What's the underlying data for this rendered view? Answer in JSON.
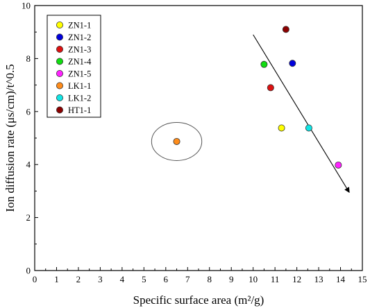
{
  "chart_data": {
    "type": "scatter",
    "xlabel": "Specific surface area (m²/g)",
    "ylabel": "Ion diffusion rate (μs/cm)/t^0.5",
    "xlim": [
      0,
      15
    ],
    "ylim": [
      0,
      10
    ],
    "x_ticks": [
      "0",
      "1",
      "2",
      "3",
      "4",
      "5",
      "6",
      "7",
      "8",
      "9",
      "10",
      "11",
      "12",
      "13",
      "14",
      "15"
    ],
    "y_ticks": [
      "0",
      "2",
      "4",
      "6",
      "8",
      "10"
    ],
    "grid": false,
    "legend_position": "top-left",
    "series": [
      {
        "name": "ZN1-1",
        "color": "#ffff00",
        "x": 11.3,
        "y": 5.38
      },
      {
        "name": "ZN1-2",
        "color": "#0000dd",
        "x": 11.8,
        "y": 7.82
      },
      {
        "name": "ZN1-3",
        "color": "#dd1111",
        "x": 10.8,
        "y": 6.9
      },
      {
        "name": "ZN1-4",
        "color": "#11dd11",
        "x": 10.5,
        "y": 7.78
      },
      {
        "name": "ZN1-5",
        "color": "#ff22ff",
        "x": 13.9,
        "y": 3.98
      },
      {
        "name": "LK1-1",
        "color": "#ff8c1a",
        "x": 6.5,
        "y": 4.87
      },
      {
        "name": "LK1-2",
        "color": "#11e5e5",
        "x": 12.55,
        "y": 5.38
      },
      {
        "name": "HT1-1",
        "color": "#8b0000",
        "x": 11.5,
        "y": 9.1
      }
    ],
    "annotations": {
      "trend_arrow": {
        "from": [
          10.0,
          8.9
        ],
        "to": [
          14.4,
          2.95
        ],
        "color": "#000000"
      },
      "ellipse": {
        "center": [
          6.5,
          4.87
        ],
        "rx_data": 1.15,
        "ry_data": 0.72,
        "color": "#555555"
      }
    }
  }
}
